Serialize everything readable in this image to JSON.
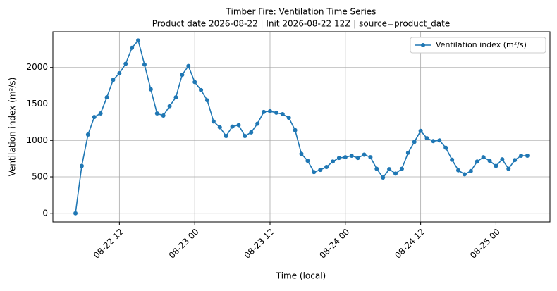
{
  "chart_data": {
    "type": "line",
    "title": "Timber Fire: Ventilation Time Series",
    "subtitle": "Product date 2026-08-22 | Init 2026-08-22 12Z | source=product_date",
    "x_label": "Time (local)",
    "y_label": "Ventilation index (m²/s)",
    "x": [
      "08-22 05",
      "08-22 06",
      "08-22 07",
      "08-22 08",
      "08-22 09",
      "08-22 10",
      "08-22 11",
      "08-22 12",
      "08-22 13",
      "08-22 14",
      "08-22 15",
      "08-22 16",
      "08-22 17",
      "08-22 18",
      "08-22 19",
      "08-22 20",
      "08-22 21",
      "08-22 22",
      "08-22 23",
      "08-23 00",
      "08-23 01",
      "08-23 02",
      "08-23 03",
      "08-23 04",
      "08-23 05",
      "08-23 06",
      "08-23 07",
      "08-23 08",
      "08-23 09",
      "08-23 10",
      "08-23 11",
      "08-23 12",
      "08-23 13",
      "08-23 14",
      "08-23 15",
      "08-23 16",
      "08-23 17",
      "08-23 18",
      "08-23 19",
      "08-23 20",
      "08-23 21",
      "08-23 22",
      "08-23 23",
      "08-24 00",
      "08-24 01",
      "08-24 02",
      "08-24 03",
      "08-24 04",
      "08-24 05",
      "08-24 06",
      "08-24 07",
      "08-24 08",
      "08-24 09",
      "08-24 10",
      "08-24 11",
      "08-24 12",
      "08-24 13",
      "08-24 14",
      "08-24 15",
      "08-24 16",
      "08-24 17",
      "08-24 18",
      "08-24 19",
      "08-24 20",
      "08-24 21",
      "08-24 22",
      "08-24 23",
      "08-25 00",
      "08-25 01",
      "08-25 02",
      "08-25 03",
      "08-25 04",
      "08-25 05"
    ],
    "series": [
      {
        "name": "Ventilation index (m²/s)",
        "color": "#1f77b4",
        "values": [
          0,
          650,
          1080,
          1320,
          1370,
          1590,
          1830,
          1920,
          2050,
          2270,
          2370,
          2040,
          1700,
          1370,
          1340,
          1470,
          1590,
          1900,
          2020,
          1800,
          1690,
          1550,
          1260,
          1180,
          1060,
          1190,
          1210,
          1060,
          1110,
          1230,
          1390,
          1400,
          1380,
          1360,
          1310,
          1140,
          815,
          720,
          565,
          595,
          635,
          710,
          760,
          770,
          790,
          760,
          805,
          770,
          610,
          490,
          605,
          545,
          610,
          830,
          980,
          1130,
          1030,
          990,
          1000,
          900,
          735,
          590,
          535,
          580,
          710,
          770,
          720,
          650,
          740,
          610,
          730,
          790,
          790
        ]
      }
    ],
    "xlim": [
      "08-22 01:24",
      "08-25 08:36"
    ],
    "xticks": [
      "08-22 12",
      "08-23 00",
      "08-23 12",
      "08-24 00",
      "08-24 12",
      "08-25 00"
    ],
    "ylim": [
      -118,
      2490
    ],
    "yticks": [
      0,
      500,
      1000,
      1500,
      2000
    ],
    "grid": true,
    "legend": "upper right"
  }
}
